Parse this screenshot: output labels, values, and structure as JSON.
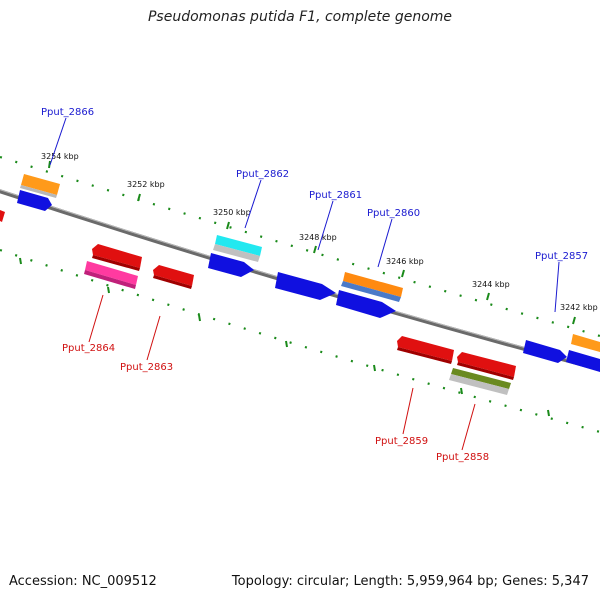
{
  "title": "Pseudomonas putida F1, complete genome",
  "footer": {
    "accession": "Accession: NC_009512",
    "summary": "Topology: circular; Length: 5,959,964 bp; Genes: 5,347"
  },
  "colors": {
    "backbone": "#808080",
    "tick": "#1a8a1a",
    "forward_label": "#1a1ad0",
    "reverse_label": "#d01010"
  },
  "ticks": [
    {
      "label": "3254 kbp"
    },
    {
      "label": "3252 kbp"
    },
    {
      "label": "3250 kbp"
    },
    {
      "label": "3248 kbp"
    },
    {
      "label": "3246 kbp"
    },
    {
      "label": "3244 kbp"
    },
    {
      "label": "3242 kbp"
    }
  ],
  "genes": [
    {
      "name": "Pput_2866",
      "strand": "forward"
    },
    {
      "name": "Pput_2864",
      "strand": "reverse"
    },
    {
      "name": "Pput_2863",
      "strand": "reverse"
    },
    {
      "name": "Pput_2862",
      "strand": "forward"
    },
    {
      "name": "Pput_2861",
      "strand": "forward"
    },
    {
      "name": "Pput_2860",
      "strand": "forward"
    },
    {
      "name": "Pput_2859",
      "strand": "reverse"
    },
    {
      "name": "Pput_2858",
      "strand": "reverse"
    },
    {
      "name": "Pput_2857",
      "strand": "forward"
    }
  ]
}
